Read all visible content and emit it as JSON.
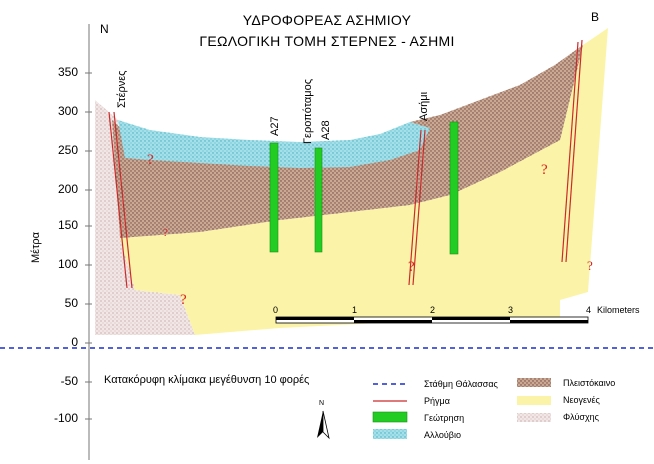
{
  "title": {
    "line1": "ΥΔΡΟΦΟΡΕΑΣ ΑΣΗΜΙΟΥ",
    "line2": "ΓΕΩΛΟΓΙΚΗ ΤΟΜΗ ΣΤΕΡΝΕΣ - ΑΣΗΜΙ"
  },
  "orientation": {
    "west_end": "N",
    "east_end": "B",
    "north_arrow": "N"
  },
  "y_axis": {
    "label": "Μέτρα",
    "ticks": [
      "350",
      "300",
      "250",
      "200",
      "150",
      "100",
      "50",
      "0",
      "-50",
      "-100"
    ]
  },
  "place_labels": {
    "sternes": "Στέρνες",
    "gerопotamos": "Γεροπόταμος",
    "asimi": "Ασήμι"
  },
  "wells": [
    {
      "label": "Α27"
    },
    {
      "label": "Α28"
    },
    {
      "label": ""
    }
  ],
  "unknown_marker": "?",
  "scale_bar": {
    "ticks": [
      "0",
      "1",
      "2",
      "3",
      "4"
    ],
    "unit": "Kilometers"
  },
  "vertical_exaggeration_note": "Κατακόρυφη κλίμακα μεγέθυνση 10 φορές",
  "legend": {
    "left": [
      {
        "label": "Στάθμη Θάλασσας",
        "symbol": "dashed-blue-line"
      },
      {
        "label": "Ρήγμα",
        "symbol": "red-line"
      },
      {
        "label": "Γεώτρηση",
        "symbol": "green-box"
      },
      {
        "label": "Αλλούβιο",
        "symbol": "cyan-dots"
      }
    ],
    "right": [
      {
        "label": "Πλειστόκαινο",
        "symbol": "brown-dots"
      },
      {
        "label": "Νεογενές",
        "symbol": "yellow-fill"
      },
      {
        "label": "Φλύσχης",
        "symbol": "flysch-pattern"
      }
    ]
  },
  "colors": {
    "alluvium": "#8fd7e3",
    "pleistocene": "#b99a86",
    "neogene": "#fbf4a8",
    "flysch": "#e9dedd",
    "well": "#22cc22",
    "fault": "#cc2a2a",
    "sea_level": "#1a2fcc"
  }
}
